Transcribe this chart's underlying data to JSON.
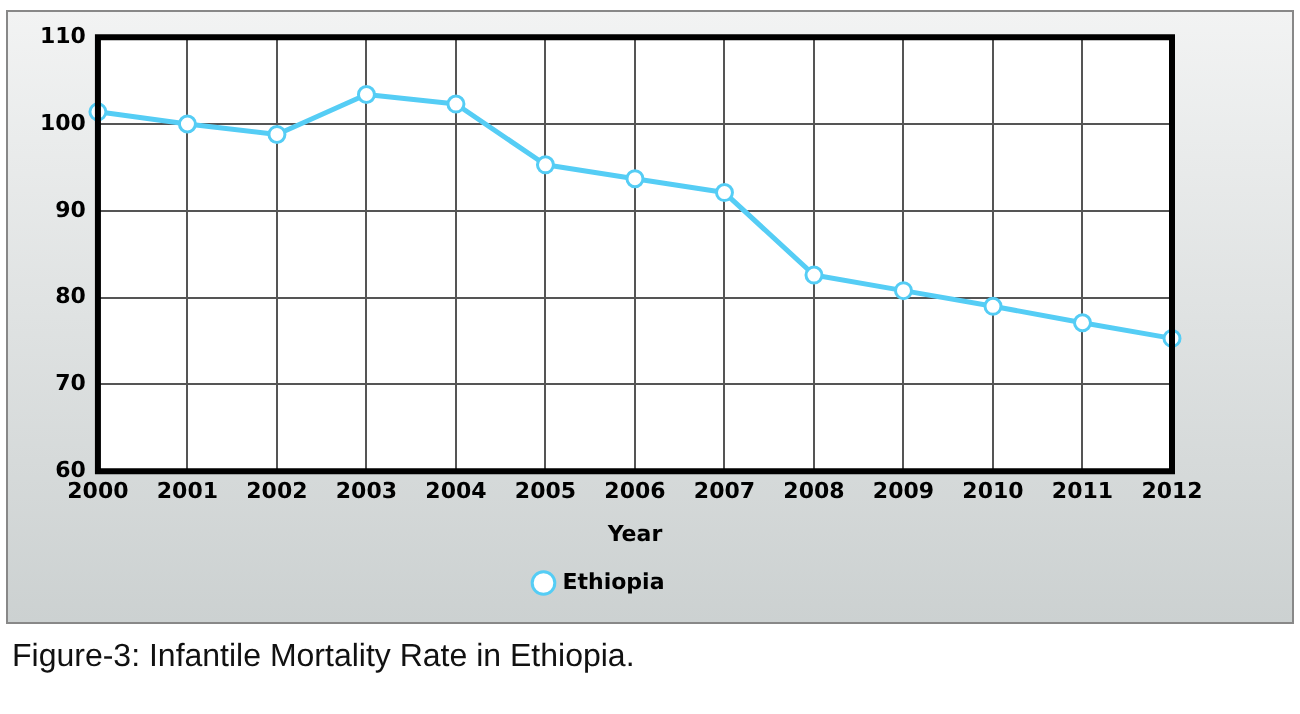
{
  "chart_data": {
    "type": "line",
    "xlabel": "Year",
    "categories": [
      "2000",
      "2001",
      "2002",
      "2003",
      "2004",
      "2005",
      "2006",
      "2007",
      "2008",
      "2009",
      "2010",
      "2011",
      "2012"
    ],
    "series": [
      {
        "name": "Ethiopia",
        "color": "#55cdf5",
        "values": [
          101.4,
          100.0,
          98.8,
          103.4,
          102.3,
          95.3,
          93.7,
          92.1,
          82.6,
          80.8,
          79.0,
          77.1,
          75.3
        ]
      }
    ],
    "ylim": [
      60,
      110
    ],
    "yticks": [
      60,
      70,
      80,
      90,
      100,
      110
    ],
    "grid": true,
    "legend": "bottom",
    "marker": "circle",
    "line_style": "solid",
    "annotations": [
      "Figure-3: Infantile Mortality Rate in Ethiopia."
    ]
  }
}
